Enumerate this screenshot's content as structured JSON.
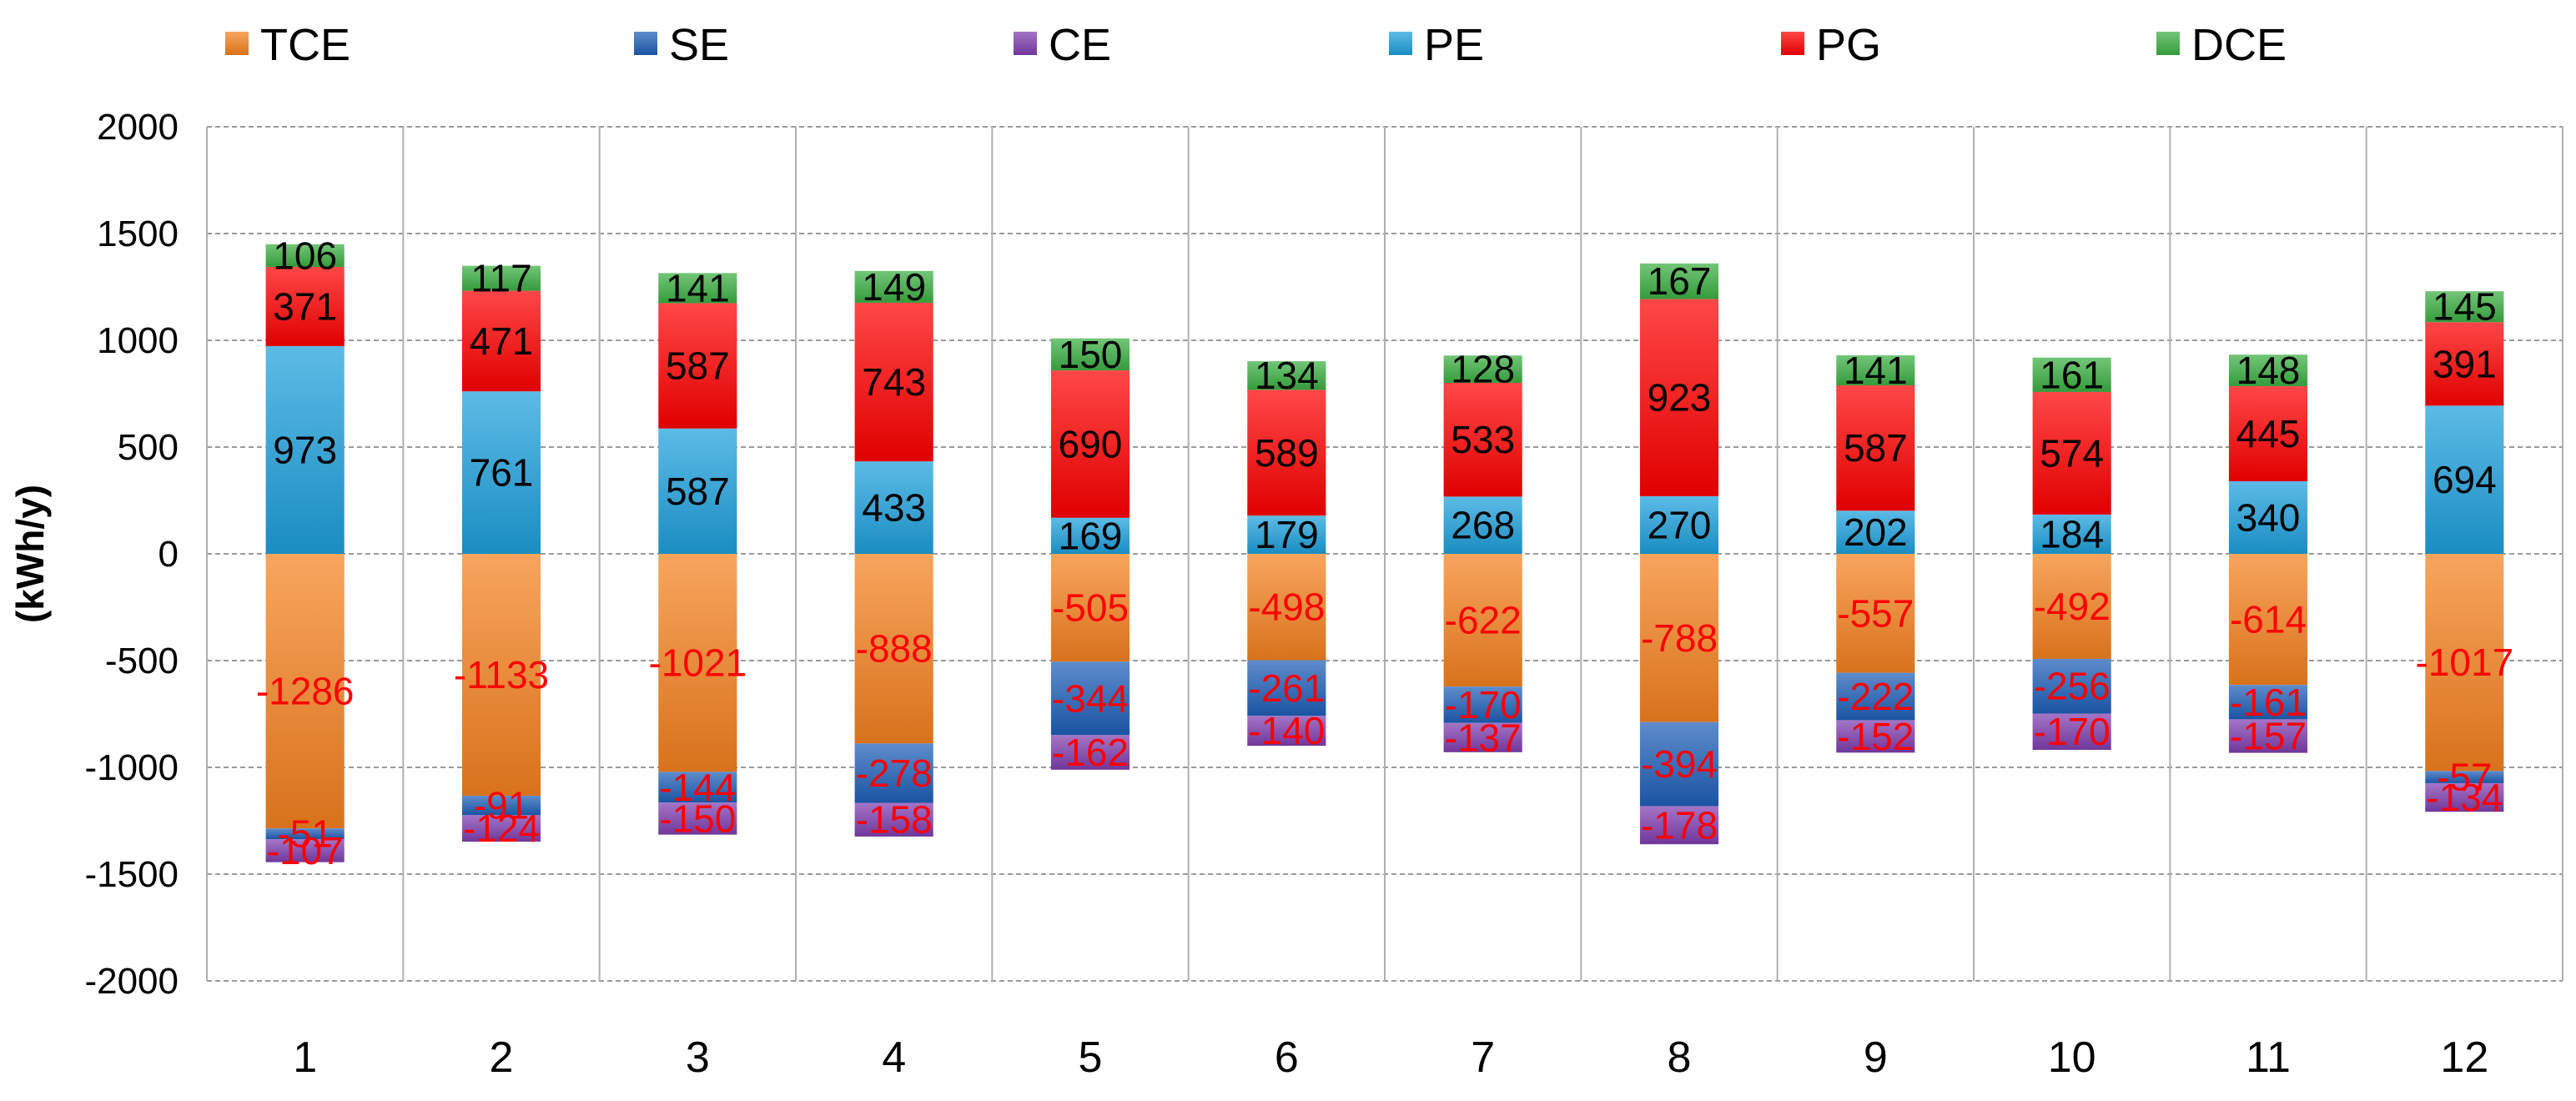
{
  "chart_data": {
    "type": "bar",
    "stacked": true,
    "title": "",
    "xlabel": "",
    "ylabel": "(kWh/y)",
    "ylim": [
      -2000,
      2000
    ],
    "yticks": [
      -2000,
      -1500,
      -1000,
      -500,
      0,
      500,
      1000,
      1500,
      2000
    ],
    "grid": true,
    "legend_position": "top",
    "categories": [
      "1",
      "2",
      "3",
      "4",
      "5",
      "6",
      "7",
      "8",
      "9",
      "10",
      "11",
      "12"
    ],
    "series": [
      {
        "name": "TCE",
        "color": "#f58220",
        "values": [
          -1286,
          -1133,
          -1021,
          -888,
          -505,
          -498,
          -622,
          -788,
          -557,
          -492,
          -614,
          -1017
        ]
      },
      {
        "name": "SE",
        "color": "#1f5fb8",
        "values": [
          -51,
          -91,
          -144,
          -278,
          -344,
          -261,
          -170,
          -394,
          -222,
          -256,
          -161,
          -57
        ]
      },
      {
        "name": "CE",
        "color": "#7f3fb0",
        "values": [
          -107,
          -124,
          -150,
          -158,
          -162,
          -140,
          -137,
          -178,
          -152,
          -170,
          -157,
          -134
        ]
      },
      {
        "name": "PE",
        "color": "#1ea0dc",
        "values": [
          973,
          761,
          587,
          433,
          169,
          179,
          268,
          270,
          202,
          184,
          340,
          694
        ]
      },
      {
        "name": "PG",
        "color": "#ff0000",
        "values": [
          371,
          471,
          587,
          743,
          690,
          589,
          533,
          923,
          587,
          574,
          445,
          391
        ]
      },
      {
        "name": "DCE",
        "color": "#3cb043",
        "values": [
          106,
          117,
          141,
          149,
          150,
          134,
          128,
          167,
          141,
          161,
          148,
          145
        ]
      }
    ]
  }
}
